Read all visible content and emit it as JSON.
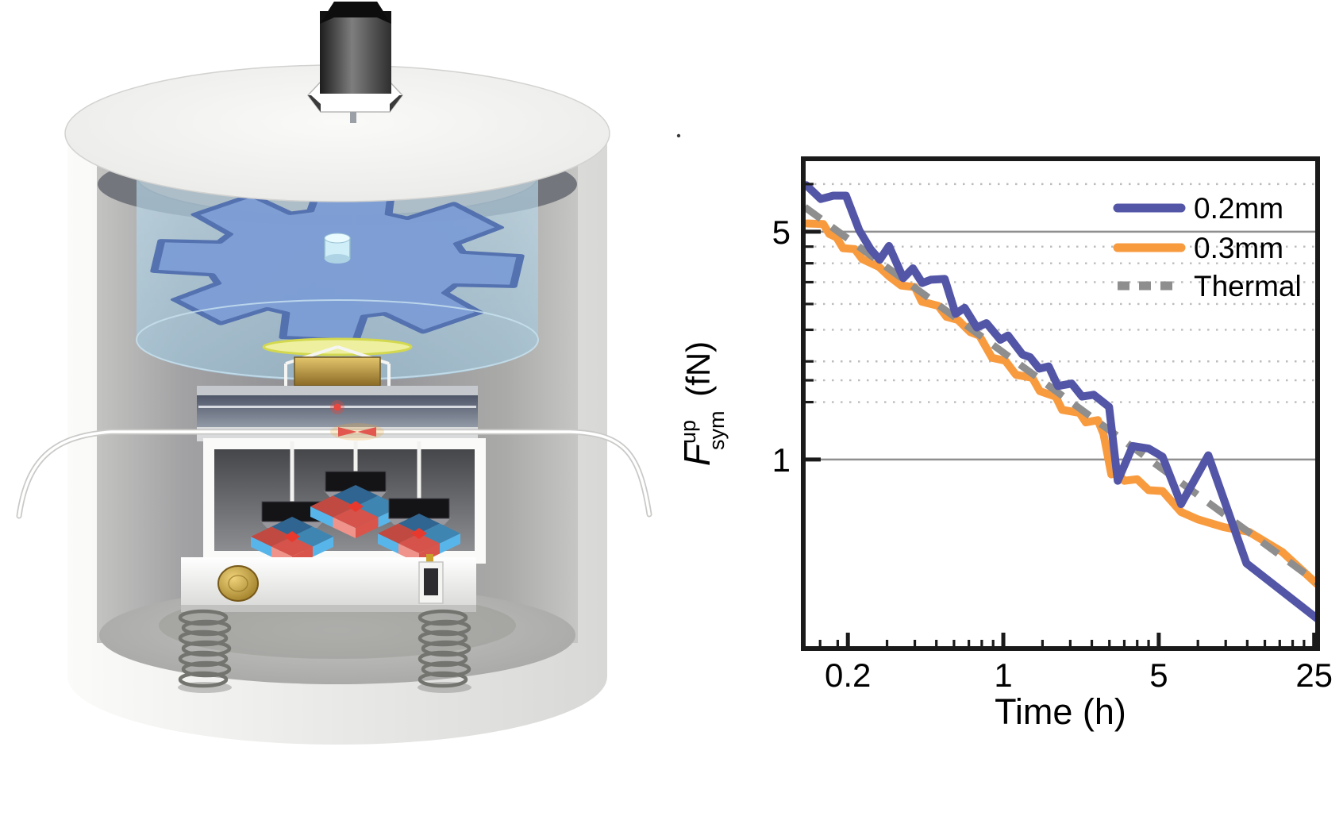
{
  "figure": {
    "description_left_panel": "",
    "legend": {
      "entries": [
        {
          "label": "0.2mm",
          "color": "#5355a7",
          "dashed": false
        },
        {
          "label": "0.3mm",
          "color": "#f89b3f",
          "dashed": false
        },
        {
          "label": "Thermal",
          "color": "#8e8e8e",
          "dashed": true
        }
      ],
      "position": "top-right"
    }
  },
  "chart_data": {
    "type": "line",
    "title": "",
    "xlabel": "Time (h)",
    "ylabel_parts": {
      "main": "F",
      "sup": "up",
      "sub": "sym",
      "unit": "(fN)"
    },
    "x_scale": "log",
    "y_scale": "log",
    "xlim": [
      0.126,
      25.9
    ],
    "ylim": [
      0.263,
      8.37
    ],
    "x_major_ticks": [
      {
        "value": 0.2,
        "label": "0.2"
      },
      {
        "value": 1,
        "label": "1"
      },
      {
        "value": 5,
        "label": "5"
      },
      {
        "value": 25,
        "label": "25"
      }
    ],
    "x_minor_ticks": [
      0.15,
      0.18,
      0.3,
      0.4,
      0.5,
      0.6,
      0.7,
      0.8,
      0.9,
      1.5,
      2,
      2.5,
      3,
      3.5,
      4,
      4.5,
      7.5,
      10,
      12.5,
      15,
      17.5,
      20,
      22.5
    ],
    "y_major_ticks": [
      {
        "value": 5,
        "label": "5"
      },
      {
        "value": 1,
        "label": "1"
      }
    ],
    "y_minor_gridlines": [
      7,
      4.5,
      4,
      3.5,
      3,
      2.5,
      2,
      1.75,
      1.5
    ],
    "grid": {
      "major_color": "#8f8f8f",
      "minor_color": "#bcbcbc",
      "minor_style": "dotted"
    },
    "series": [
      {
        "name": "0.2mm",
        "color": "#5355a7",
        "style": "solid",
        "points": [
          [
            0.13,
            6.95
          ],
          [
            0.151,
            6.3
          ],
          [
            0.172,
            6.45
          ],
          [
            0.196,
            6.45
          ],
          [
            0.225,
            5.05
          ],
          [
            0.253,
            4.42
          ],
          [
            0.278,
            4.1
          ],
          [
            0.306,
            4.52
          ],
          [
            0.355,
            3.6
          ],
          [
            0.392,
            3.86
          ],
          [
            0.432,
            3.48
          ],
          [
            0.472,
            3.56
          ],
          [
            0.545,
            3.58
          ],
          [
            0.61,
            2.8
          ],
          [
            0.67,
            2.92
          ],
          [
            0.76,
            2.54
          ],
          [
            0.84,
            2.62
          ],
          [
            0.97,
            2.33
          ],
          [
            1.05,
            2.4
          ],
          [
            1.22,
            2.1
          ],
          [
            1.32,
            2.06
          ],
          [
            1.45,
            1.9
          ],
          [
            1.6,
            1.93
          ],
          [
            1.76,
            1.68
          ],
          [
            2.03,
            1.71
          ],
          [
            2.26,
            1.56
          ],
          [
            2.55,
            1.58
          ],
          [
            2.99,
            1.45
          ],
          [
            3.27,
            0.86
          ],
          [
            3.82,
            1.1
          ],
          [
            4.5,
            1.08
          ],
          [
            5.2,
            1.02
          ],
          [
            6.3,
            0.73
          ],
          [
            8.35,
            1.03
          ],
          [
            12.4,
            0.48
          ],
          [
            25.8,
            0.325
          ]
        ]
      },
      {
        "name": "0.3mm",
        "color": "#f89b3f",
        "style": "solid",
        "points": [
          [
            0.131,
            5.3
          ],
          [
            0.155,
            5.28
          ],
          [
            0.165,
            4.92
          ],
          [
            0.178,
            4.8
          ],
          [
            0.19,
            4.45
          ],
          [
            0.215,
            4.42
          ],
          [
            0.232,
            4.12
          ],
          [
            0.276,
            3.9
          ],
          [
            0.306,
            3.65
          ],
          [
            0.347,
            3.42
          ],
          [
            0.4,
            3.38
          ],
          [
            0.43,
            3.05
          ],
          [
            0.51,
            2.96
          ],
          [
            0.555,
            2.74
          ],
          [
            0.625,
            2.68
          ],
          [
            0.71,
            2.46
          ],
          [
            0.78,
            2.4
          ],
          [
            0.89,
            2.05
          ],
          [
            1.02,
            2.01
          ],
          [
            1.14,
            1.82
          ],
          [
            1.35,
            1.78
          ],
          [
            1.46,
            1.62
          ],
          [
            1.72,
            1.56
          ],
          [
            1.84,
            1.42
          ],
          [
            2.2,
            1.39
          ],
          [
            2.35,
            1.3
          ],
          [
            2.66,
            1.32
          ],
          [
            2.82,
            1.2
          ],
          [
            3.06,
            0.9
          ],
          [
            3.2,
            0.92
          ],
          [
            3.5,
            0.86
          ],
          [
            4.0,
            0.87
          ],
          [
            4.5,
            0.805
          ],
          [
            5.2,
            0.8
          ],
          [
            6.3,
            0.69
          ],
          [
            7.5,
            0.655
          ],
          [
            9.8,
            0.62
          ],
          [
            12.7,
            0.6
          ],
          [
            18.0,
            0.52
          ],
          [
            25.7,
            0.415
          ]
        ]
      },
      {
        "name": "Thermal",
        "color": "#8e8e8e",
        "style": "dashed",
        "points": [
          [
            0.128,
            5.95
          ],
          [
            25.9,
            0.419
          ]
        ]
      }
    ],
    "draw_order": [
      1,
      2,
      0
    ],
    "legend_position": "top-right"
  }
}
